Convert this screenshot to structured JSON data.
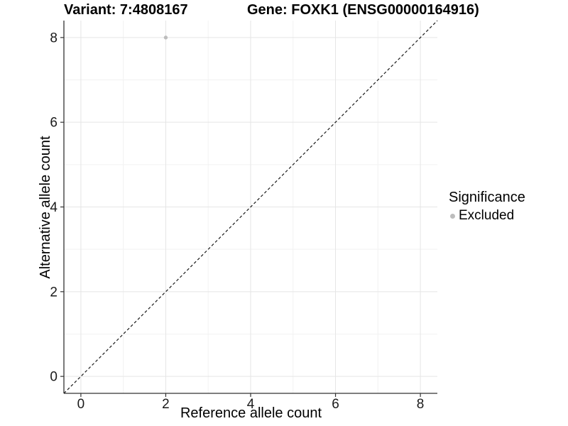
{
  "figure": {
    "background": "#ffffff"
  },
  "chart_data": {
    "type": "scatter",
    "titles": {
      "variant": "Variant: 7:4808167",
      "gene": "Gene: FOXK1 (ENSG00000164916)"
    },
    "xlabel": "Reference allele count",
    "ylabel": "Alternative allele count",
    "xlim": [
      -0.4,
      8.4
    ],
    "ylim": [
      -0.4,
      8.4
    ],
    "x_ticks": [
      0,
      2,
      4,
      6,
      8
    ],
    "y_ticks": [
      0,
      2,
      4,
      6,
      8
    ],
    "x_minor": [
      1,
      3,
      5,
      7
    ],
    "y_minor": [
      1,
      3,
      5,
      7
    ],
    "grid": "on",
    "identity_line": {
      "style": "dashed",
      "from": [
        -0.4,
        -0.4
      ],
      "to": [
        8.4,
        8.4
      ]
    },
    "series": [
      {
        "name": "Excluded",
        "color": "#bdbdbd",
        "points": [
          {
            "x": 2,
            "y": 8
          }
        ]
      }
    ],
    "legend": {
      "title": "Significance",
      "position": "right",
      "items": [
        {
          "label": "Excluded",
          "color": "#bdbdbd",
          "marker": "circle"
        }
      ]
    },
    "colors": {
      "background": "#ffffff",
      "grid_major": "#e5e5e5",
      "grid_minor": "#f2f2f2",
      "axis": "#333333",
      "tick_text": "#1a1a1a",
      "identity": "#1a1a1a"
    }
  }
}
